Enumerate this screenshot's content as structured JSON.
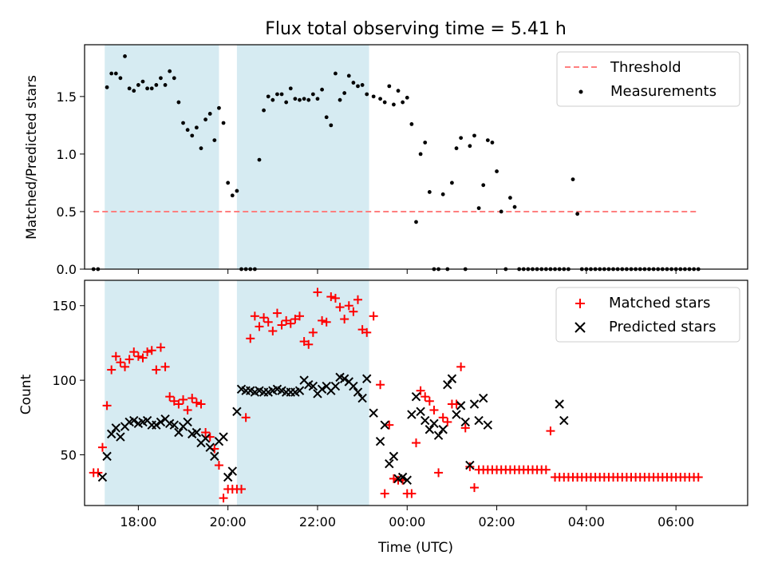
{
  "chart_data": [
    {
      "type": "scatter",
      "panel": "top",
      "title": "Flux total observing time = 5.41 h",
      "xlabel": "",
      "ylabel": "Matched/Predicted stars",
      "ylim": [
        0,
        1.95
      ],
      "yticks": [
        0.0,
        0.5,
        1.0,
        1.5
      ],
      "ytick_labels": [
        "0.0",
        "0.5",
        "1.0",
        "1.5"
      ],
      "threshold": {
        "value": 0.5,
        "x_start": 17.0,
        "x_end": 30.5,
        "color": "#ff7f7f"
      },
      "shaded_intervals": [
        [
          17.25,
          19.8
        ],
        [
          20.2,
          23.15
        ]
      ],
      "legend": [
        {
          "label": "Threshold",
          "style": "dashed-line"
        },
        {
          "label": "Measurements",
          "style": "dot"
        }
      ],
      "legend_position": "top-right",
      "measurements": {
        "x": [
          17.0,
          17.1,
          17.3,
          17.4,
          17.5,
          17.6,
          17.7,
          17.8,
          17.9,
          18.0,
          18.1,
          18.2,
          18.3,
          18.4,
          18.5,
          18.6,
          18.7,
          18.8,
          18.9,
          19.0,
          19.1,
          19.2,
          19.3,
          19.4,
          19.5,
          19.6,
          19.7,
          19.8,
          19.9,
          20.0,
          20.1,
          20.2,
          20.3,
          20.4,
          20.5,
          20.6,
          20.7,
          20.8,
          20.9,
          21.0,
          21.1,
          21.2,
          21.3,
          21.4,
          21.5,
          21.6,
          21.7,
          21.8,
          21.9,
          22.0,
          22.1,
          22.2,
          22.3,
          22.4,
          22.5,
          22.6,
          22.7,
          22.8,
          22.9,
          23.0,
          23.1,
          23.25,
          23.4,
          23.5,
          23.6,
          23.7,
          23.8,
          23.9,
          24.0,
          24.1,
          24.2,
          24.3,
          24.4,
          24.5,
          24.6,
          24.7,
          24.8,
          24.9,
          25.0,
          25.1,
          25.2,
          25.3,
          25.4,
          25.5,
          25.6,
          25.7,
          25.8,
          25.9,
          26.0,
          26.1,
          26.2,
          26.3,
          26.4,
          26.5,
          26.6,
          26.7,
          26.8,
          26.9,
          27.0,
          27.1,
          27.2,
          27.3,
          27.4,
          27.5,
          27.6,
          27.7,
          27.8,
          27.9,
          28.0,
          28.1,
          28.2,
          28.3,
          28.4,
          28.5,
          28.6,
          28.7,
          28.8,
          28.9,
          29.0,
          29.1,
          29.2,
          29.3,
          29.4,
          29.5,
          29.6,
          29.7,
          29.8,
          29.9,
          30.0,
          30.1,
          30.2,
          30.3,
          30.4,
          30.5
        ],
        "y": [
          0.0,
          0.0,
          1.58,
          1.7,
          1.7,
          1.66,
          1.85,
          1.57,
          1.55,
          1.6,
          1.63,
          1.57,
          1.57,
          1.6,
          1.66,
          1.6,
          1.72,
          1.66,
          1.45,
          1.27,
          1.21,
          1.16,
          1.23,
          1.05,
          1.3,
          1.35,
          1.12,
          1.4,
          1.27,
          0.75,
          0.64,
          0.68,
          0.0,
          0.0,
          0.0,
          0.0,
          0.95,
          1.38,
          1.5,
          1.47,
          1.52,
          1.52,
          1.45,
          1.57,
          1.48,
          1.47,
          1.48,
          1.47,
          1.52,
          1.48,
          1.56,
          1.32,
          1.25,
          1.7,
          1.47,
          1.53,
          1.68,
          1.62,
          1.59,
          1.6,
          1.52,
          1.5,
          1.48,
          1.45,
          1.59,
          1.43,
          1.55,
          1.45,
          1.49,
          1.26,
          0.41,
          1.0,
          1.1,
          0.67,
          0.0,
          0.0,
          0.65,
          0.0,
          0.75,
          1.05,
          1.14,
          0.0,
          1.07,
          1.16,
          0.53,
          0.73,
          1.12,
          1.1,
          0.85,
          0.5,
          0.0,
          0.62,
          0.54,
          0.0,
          0.0,
          0.0,
          0.0,
          0.0,
          0.0,
          0.0,
          0.0,
          0.0,
          0.0,
          0.0,
          0.0,
          0.78,
          0.48,
          0.0,
          0.0,
          0.0,
          0.0,
          0.0,
          0.0,
          0.0,
          0.0,
          0.0,
          0.0,
          0.0,
          0.0,
          0.0,
          0.0,
          0.0,
          0.0,
          0.0,
          0.0,
          0.0,
          0.0,
          0.0,
          0.0,
          0.0,
          0.0,
          0.0,
          0.0,
          0.0
        ]
      }
    },
    {
      "type": "scatter",
      "panel": "bottom",
      "title": "",
      "xlabel": "Time (UTC)",
      "ylabel": "Count",
      "ylim": [
        16,
        167
      ],
      "xlim": [
        16.8,
        31.6
      ],
      "yticks": [
        50,
        100,
        150
      ],
      "ytick_labels": [
        "50",
        "100",
        "150"
      ],
      "xticks": [
        18,
        20,
        22,
        24,
        26,
        28,
        30
      ],
      "xtick_labels": [
        "18:00",
        "20:00",
        "22:00",
        "00:00",
        "02:00",
        "04:00",
        "06:00"
      ],
      "shaded_intervals": [
        [
          17.25,
          19.8
        ],
        [
          20.2,
          23.15
        ]
      ],
      "legend": [
        {
          "label": "Matched stars",
          "style": "plus",
          "color": "#ff0000"
        },
        {
          "label": "Predicted stars",
          "style": "x",
          "color": "#000000"
        }
      ],
      "legend_position": "top-right",
      "series": [
        {
          "name": "Matched stars",
          "x": [
            17.0,
            17.1,
            17.2,
            17.3,
            17.4,
            17.5,
            17.6,
            17.7,
            17.8,
            17.9,
            18.0,
            18.1,
            18.2,
            18.3,
            18.4,
            18.5,
            18.6,
            18.7,
            18.8,
            18.9,
            19.0,
            19.1,
            19.2,
            19.3,
            19.4,
            19.5,
            19.6,
            19.7,
            19.8,
            19.9,
            20.0,
            20.1,
            20.2,
            20.3,
            20.4,
            20.5,
            20.6,
            20.7,
            20.8,
            20.9,
            21.0,
            21.1,
            21.2,
            21.3,
            21.4,
            21.5,
            21.6,
            21.7,
            21.8,
            21.9,
            22.0,
            22.1,
            22.2,
            22.3,
            22.4,
            22.5,
            22.6,
            22.7,
            22.8,
            22.9,
            23.0,
            23.1,
            23.25,
            23.4,
            23.5,
            23.6,
            23.7,
            23.8,
            23.9,
            24.0,
            24.1,
            24.2,
            24.3,
            24.4,
            24.5,
            24.6,
            24.7,
            24.8,
            24.9,
            25.0,
            25.1,
            25.2,
            25.3,
            25.4,
            25.5,
            25.6,
            25.7,
            25.8,
            25.9,
            26.0,
            26.1,
            26.2,
            26.3,
            26.4,
            26.5,
            26.6,
            26.7,
            26.8,
            26.9,
            27.0,
            27.1,
            27.2,
            27.3,
            27.4,
            27.5,
            27.6,
            27.7,
            27.8,
            27.9,
            28.0,
            28.1,
            28.2,
            28.3,
            28.4,
            28.5,
            28.6,
            28.7,
            28.8,
            28.9,
            29.0,
            29.1,
            29.2,
            29.3,
            29.4,
            29.5,
            29.6,
            29.7,
            29.8,
            29.9,
            30.0,
            30.1,
            30.2,
            30.3,
            30.4,
            30.5
          ],
          "y": [
            38,
            38,
            55,
            83,
            107,
            116,
            112,
            109,
            114,
            119,
            116,
            115,
            119,
            120,
            107,
            122,
            109,
            89,
            86,
            84,
            87,
            80,
            88,
            85,
            84,
            65,
            62,
            54,
            43,
            21,
            27,
            27,
            27,
            27,
            75,
            128,
            143,
            136,
            142,
            139,
            133,
            145,
            137,
            140,
            138,
            141,
            143,
            126,
            124,
            132,
            159,
            140,
            139,
            156,
            155,
            149,
            141,
            150,
            146,
            154,
            134,
            132,
            143,
            97,
            24,
            70,
            34,
            33,
            33,
            24,
            24,
            58,
            93,
            89,
            86,
            80,
            38,
            75,
            72,
            84,
            84,
            109,
            68,
            42,
            28,
            40,
            40,
            40,
            40,
            40,
            40,
            40,
            40,
            40,
            40,
            40,
            40,
            40,
            40,
            40,
            40,
            66,
            35,
            35,
            35,
            35,
            35,
            35,
            35,
            35,
            35,
            35,
            35,
            35,
            35,
            35,
            35,
            35,
            35,
            35,
            35,
            35,
            35,
            35,
            35,
            35,
            35,
            35,
            35,
            35,
            35,
            35,
            35,
            35,
            35
          ]
        },
        {
          "name": "Predicted stars",
          "x": [
            17.2,
            17.3,
            17.4,
            17.5,
            17.6,
            17.7,
            17.8,
            17.9,
            18.0,
            18.1,
            18.2,
            18.3,
            18.4,
            18.5,
            18.6,
            18.7,
            18.8,
            18.9,
            19.0,
            19.1,
            19.2,
            19.3,
            19.4,
            19.5,
            19.6,
            19.7,
            19.8,
            19.9,
            20.0,
            20.1,
            20.2,
            20.3,
            20.4,
            20.5,
            20.6,
            20.7,
            20.8,
            20.9,
            21.0,
            21.1,
            21.2,
            21.3,
            21.4,
            21.5,
            21.6,
            21.7,
            21.8,
            21.9,
            22.0,
            22.1,
            22.2,
            22.3,
            22.4,
            22.5,
            22.6,
            22.7,
            22.8,
            22.9,
            23.0,
            23.1,
            23.25,
            23.4,
            23.5,
            23.6,
            23.7,
            23.8,
            23.9,
            24.0,
            24.1,
            24.2,
            24.3,
            24.4,
            24.5,
            24.6,
            24.7,
            24.8,
            24.9,
            25.0,
            25.1,
            25.2,
            25.3,
            25.4,
            25.5,
            25.6,
            25.7,
            25.8,
            27.4,
            27.5
          ],
          "y": [
            35,
            49,
            64,
            68,
            62,
            69,
            72,
            73,
            71,
            72,
            73,
            70,
            70,
            72,
            74,
            71,
            70,
            65,
            69,
            72,
            64,
            65,
            58,
            61,
            55,
            49,
            59,
            62,
            35,
            39,
            79,
            94,
            93,
            93,
            92,
            93,
            92,
            92,
            93,
            94,
            93,
            92,
            92,
            92,
            93,
            100,
            97,
            96,
            91,
            94,
            96,
            93,
            96,
            102,
            101,
            99,
            96,
            92,
            88,
            101,
            78,
            59,
            70,
            44,
            49,
            34,
            35,
            33,
            77,
            89,
            79,
            73,
            67,
            71,
            63,
            67,
            97,
            101,
            77,
            83,
            72,
            43,
            84,
            73,
            88,
            70,
            84,
            73
          ]
        }
      ]
    }
  ]
}
